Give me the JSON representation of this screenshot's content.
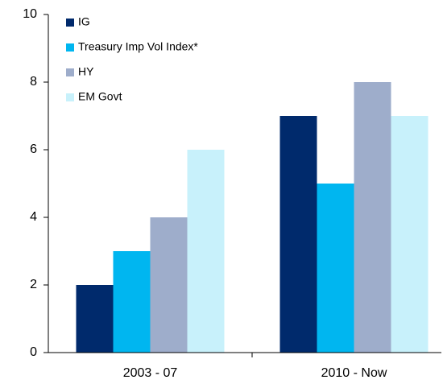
{
  "chart_data": {
    "type": "bar",
    "categories": [
      "2003 - 07",
      "2010 - Now"
    ],
    "series": [
      {
        "name": "IG",
        "color": "#002a6c",
        "values": [
          2,
          7
        ]
      },
      {
        "name": "Treasury Imp Vol Index*",
        "color": "#00b6f0",
        "values": [
          3,
          5
        ]
      },
      {
        "name": "HY",
        "color": "#9eadcb",
        "values": [
          4,
          8
        ]
      },
      {
        "name": "EM Govt",
        "color": "#c8f1fb",
        "values": [
          6,
          7
        ]
      }
    ],
    "ylim": [
      0,
      10
    ],
    "yticks": [
      0,
      2,
      4,
      6,
      8,
      10
    ],
    "grid": false,
    "legend": "top-left"
  }
}
